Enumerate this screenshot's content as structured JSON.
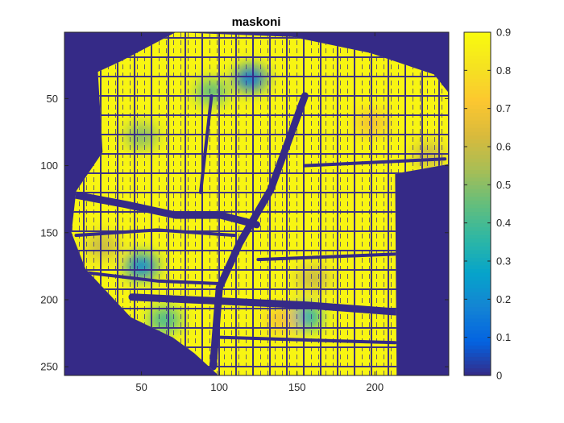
{
  "chart_data": {
    "type": "heatmap",
    "title": "maskoni",
    "xlabel": "",
    "ylabel": "",
    "xlim": [
      0.5,
      247.5
    ],
    "ylim": [
      0.5,
      256.5
    ],
    "y_direction": "reverse",
    "x_ticks": [
      {
        "value": 50,
        "label": "50"
      },
      {
        "value": 100,
        "label": "100"
      },
      {
        "value": 150,
        "label": "150"
      },
      {
        "value": 200,
        "label": "200"
      }
    ],
    "y_ticks": [
      {
        "value": 50,
        "label": "50"
      },
      {
        "value": 100,
        "label": "100"
      },
      {
        "value": 150,
        "label": "150"
      },
      {
        "value": 200,
        "label": "200"
      },
      {
        "value": 250,
        "label": "250"
      }
    ],
    "colorbar": {
      "colormap": "parula",
      "clim": [
        0,
        0.9
      ],
      "ticks": [
        {
          "value": 0,
          "label": "0"
        },
        {
          "value": 0.1,
          "label": "0.1"
        },
        {
          "value": 0.2,
          "label": "0.2"
        },
        {
          "value": 0.3,
          "label": "0.3"
        },
        {
          "value": 0.4,
          "label": "0.4"
        },
        {
          "value": 0.5,
          "label": "0.5"
        },
        {
          "value": 0.6,
          "label": "0.6"
        },
        {
          "value": 0.7,
          "label": "0.7"
        },
        {
          "value": 0.8,
          "label": "0.8"
        },
        {
          "value": 0.9,
          "label": "0.9"
        }
      ]
    },
    "background_value": 0,
    "region_base_value": 0.88,
    "region_polygon": [
      [
        37,
        22
      ],
      [
        72,
        0.5
      ],
      [
        147,
        4
      ],
      [
        197,
        16
      ],
      [
        238,
        32
      ],
      [
        247,
        45
      ],
      [
        247,
        99
      ],
      [
        213,
        106
      ],
      [
        214,
        258
      ],
      [
        101,
        258
      ],
      [
        84,
        240
      ],
      [
        70,
        228
      ],
      [
        43,
        213
      ],
      [
        14,
        177
      ],
      [
        5,
        150
      ],
      [
        8,
        119
      ],
      [
        25,
        90
      ],
      [
        22,
        30
      ]
    ],
    "low_value_spots": [
      {
        "x": 120,
        "y": 35,
        "value": 0.15
      },
      {
        "x": 95,
        "y": 45,
        "value": 0.45
      },
      {
        "x": 50,
        "y": 78,
        "value": 0.5
      },
      {
        "x": 50,
        "y": 175,
        "value": 0.2
      },
      {
        "x": 25,
        "y": 160,
        "value": 0.6
      },
      {
        "x": 65,
        "y": 215,
        "value": 0.4
      },
      {
        "x": 155,
        "y": 213,
        "value": 0.3
      },
      {
        "x": 160,
        "y": 184,
        "value": 0.6
      },
      {
        "x": 235,
        "y": 92,
        "value": 0.6
      },
      {
        "x": 198,
        "y": 68,
        "value": 0.7
      },
      {
        "x": 140,
        "y": 215,
        "value": 0.7
      }
    ],
    "channels": [
      {
        "points": [
          [
            155,
            48
          ],
          [
            133,
            118
          ],
          [
            113,
            158
          ],
          [
            100,
            191
          ],
          [
            96,
            250
          ]
        ],
        "value": 0
      },
      {
        "points": [
          [
            8,
            122
          ],
          [
            40,
            129
          ],
          [
            72,
            137
          ],
          [
            101,
            137
          ],
          [
            124,
            144
          ]
        ],
        "value": 0
      },
      {
        "points": [
          [
            44,
            198
          ],
          [
            100,
            201
          ],
          [
            155,
            204
          ],
          [
            213,
            209
          ]
        ],
        "value": 0
      },
      {
        "points": [
          [
            8,
            152
          ],
          [
            60,
            148
          ],
          [
            110,
            152
          ]
        ],
        "value": 0
      },
      {
        "points": [
          [
            16,
            180
          ],
          [
            60,
            186
          ],
          [
            100,
            188
          ]
        ],
        "value": 0
      },
      {
        "points": [
          [
            125,
            170
          ],
          [
            170,
            168
          ],
          [
            213,
            166
          ]
        ],
        "value": 0
      },
      {
        "points": [
          [
            100,
            228
          ],
          [
            155,
            230
          ],
          [
            213,
            232
          ]
        ],
        "value": 0
      },
      {
        "points": [
          [
            95,
            48
          ],
          [
            88,
            120
          ]
        ],
        "value": 0
      },
      {
        "points": [
          [
            155,
            100
          ],
          [
            245,
            95
          ]
        ],
        "value": 0
      }
    ]
  }
}
